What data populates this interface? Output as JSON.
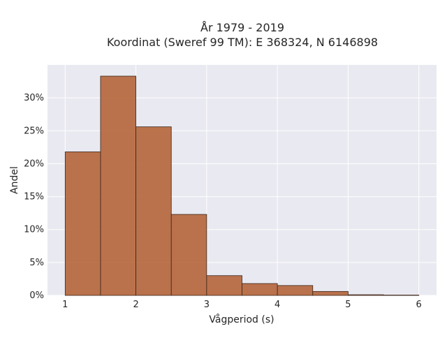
{
  "chart_data": {
    "type": "bar",
    "title": "År 1979 - 2019",
    "subtitle": "Koordinat (Sweref 99 TM): E 368324, N 6146898",
    "xlabel": "Vågperiod (s)",
    "ylabel": "Andel",
    "bin_edges": [
      1,
      1.5,
      2,
      2.5,
      3,
      3.5,
      4,
      4.5,
      5,
      5.5,
      6
    ],
    "values": [
      21.8,
      33.3,
      25.6,
      12.3,
      3.0,
      1.8,
      1.5,
      0.6,
      0.1,
      0.05
    ],
    "xlim": [
      0.75,
      6.25
    ],
    "ylim": [
      0,
      35
    ],
    "x_ticks": [
      1,
      2,
      3,
      4,
      5,
      6
    ],
    "x_tick_labels": [
      "1",
      "2",
      "3",
      "4",
      "5",
      "6"
    ],
    "y_ticks": [
      0,
      5,
      10,
      15,
      20,
      25,
      30
    ],
    "y_tick_labels": [
      "0%",
      "5%",
      "10%",
      "15%",
      "20%",
      "25%",
      "30%"
    ],
    "grid": true,
    "colors": {
      "bar_fill": "#b5653a",
      "bar_stroke": "#3a2418",
      "plot_background": "#e9e9f1",
      "grid": "#ffffff"
    }
  }
}
